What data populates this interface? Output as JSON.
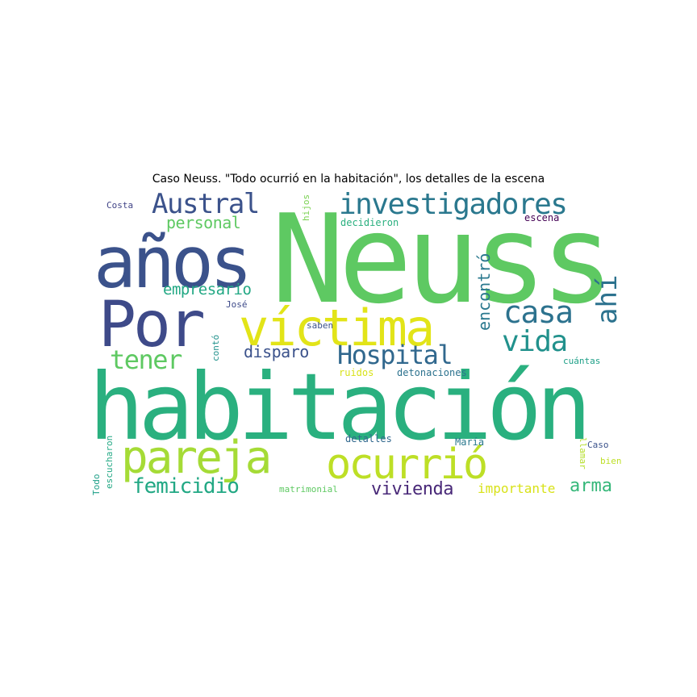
{
  "title": "Caso Neuss. \"Todo ocurrió en la habitación\", los detalles de la escena",
  "words": [
    {
      "text": "Neuss",
      "color": "#5ec962"
    },
    {
      "text": "habitación",
      "color": "#2ab07f"
    },
    {
      "text": "años",
      "color": "#3b528b"
    },
    {
      "text": "Por",
      "color": "#3e4a89"
    },
    {
      "text": "víctima",
      "color": "#e2e418"
    },
    {
      "text": "pareja",
      "color": "#a5db36"
    },
    {
      "text": "ocurrió",
      "color": "#bddf26"
    },
    {
      "text": "investigadores",
      "color": "#2a788e"
    },
    {
      "text": "Austral",
      "color": "#3b528b"
    },
    {
      "text": "casa",
      "color": "#2c728e"
    },
    {
      "text": "Hospital",
      "color": "#31688e"
    },
    {
      "text": "vida",
      "color": "#21918c"
    },
    {
      "text": "ahí",
      "color": "#2c728e"
    },
    {
      "text": "tener",
      "color": "#5ec962"
    },
    {
      "text": "femicidio",
      "color": "#22a884"
    },
    {
      "text": "personal",
      "color": "#5ec962"
    },
    {
      "text": "empresario",
      "color": "#22a884"
    },
    {
      "text": "encontró",
      "color": "#2a788e"
    },
    {
      "text": "disparo",
      "color": "#3b528b"
    },
    {
      "text": "vivienda",
      "color": "#482878"
    },
    {
      "text": "importante",
      "color": "#d8e219"
    },
    {
      "text": "arma",
      "color": "#35b779"
    },
    {
      "text": "Costa",
      "color": "#414487"
    },
    {
      "text": "hijos",
      "color": "#7ad151"
    },
    {
      "text": "decidieron",
      "color": "#2ab07f"
    },
    {
      "text": "escena",
      "color": "#440154"
    },
    {
      "text": "José",
      "color": "#3e4a89"
    },
    {
      "text": "saben",
      "color": "#3b528b"
    },
    {
      "text": "contó",
      "color": "#21918c"
    },
    {
      "text": "ruidos",
      "color": "#d8e219"
    },
    {
      "text": "detonaciones",
      "color": "#2c728e"
    },
    {
      "text": "cuántas",
      "color": "#1fa088"
    },
    {
      "text": "detalles",
      "color": "#31688e"
    },
    {
      "text": "María",
      "color": "#2a788e"
    },
    {
      "text": "llamar",
      "color": "#b5de2b"
    },
    {
      "text": "Caso",
      "color": "#3b528b"
    },
    {
      "text": "bien",
      "color": "#bddf26"
    },
    {
      "text": "escucharon",
      "color": "#22a884"
    },
    {
      "text": "Todo",
      "color": "#1fa088"
    },
    {
      "text": "matrimonial",
      "color": "#5ec962"
    }
  ]
}
